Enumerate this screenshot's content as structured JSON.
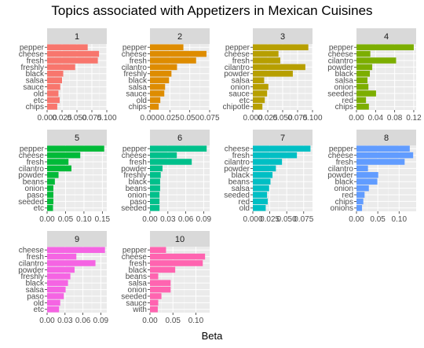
{
  "chart_data": {
    "type": "bar",
    "title": "Topics associated with Appetizers in Mexican Cuisines",
    "xlabel": "Beta",
    "ylabel": "",
    "grid": true,
    "panels": [
      {
        "name": "1",
        "color": "#F8766D",
        "xlim": [
          0,
          0.1
        ],
        "ticks": [
          0,
          0.025,
          0.05,
          0.075,
          0.1
        ],
        "tick_labels": [
          "0.000",
          "0.025",
          "0.050",
          "0.075",
          "0.100"
        ],
        "categories": [
          "pepper",
          "cheese",
          "fresh",
          "freshly",
          "black",
          "salsa",
          "sauce",
          "old",
          "etc",
          "chips"
        ],
        "values": [
          0.068,
          0.087,
          0.085,
          0.047,
          0.027,
          0.025,
          0.022,
          0.019,
          0.021,
          0.017
        ]
      },
      {
        "name": "2",
        "color": "#DE8C00",
        "xlim": [
          0,
          0.075
        ],
        "ticks": [
          0,
          0.025,
          0.05,
          0.075
        ],
        "tick_labels": [
          "0.000",
          "0.025",
          "0.050",
          "0.075"
        ],
        "categories": [
          "pepper",
          "cheese",
          "fresh",
          "cilantro",
          "freshly",
          "black",
          "salsa",
          "sauce",
          "old",
          "chips"
        ],
        "values": [
          0.042,
          0.071,
          0.058,
          0.034,
          0.027,
          0.024,
          0.019,
          0.018,
          0.013,
          0.011
        ]
      },
      {
        "name": "3",
        "color": "#B79F00",
        "xlim": [
          0,
          0.1
        ],
        "ticks": [
          0,
          0.025,
          0.05,
          0.075,
          0.1
        ],
        "tick_labels": [
          "0.000",
          "0.025",
          "0.050",
          "0.075",
          "0.100"
        ],
        "categories": [
          "pepper",
          "cheese",
          "fresh",
          "cilantro",
          "powder",
          "salsa",
          "onion",
          "sauce",
          "etc",
          "chipotle"
        ],
        "values": [
          0.093,
          0.043,
          0.046,
          0.088,
          0.067,
          0.019,
          0.026,
          0.024,
          0.02,
          0.016
        ]
      },
      {
        "name": "4",
        "color": "#7CAE00",
        "xlim": [
          0,
          0.125
        ],
        "ticks": [
          0,
          0.04,
          0.08,
          0.12
        ],
        "tick_labels": [
          "0.00",
          "0.04",
          "0.08",
          "0.12"
        ],
        "categories": [
          "pepper",
          "cheese",
          "cilantro",
          "powder",
          "black",
          "salsa",
          "onion",
          "seeded",
          "red",
          "chips"
        ],
        "values": [
          0.12,
          0.029,
          0.083,
          0.033,
          0.028,
          0.023,
          0.025,
          0.041,
          0.02,
          0.026
        ]
      },
      {
        "name": "5",
        "color": "#00BA38",
        "xlim": [
          0,
          0.162
        ],
        "ticks": [
          0,
          0.05,
          0.1,
          0.15
        ],
        "tick_labels": [
          "0.00",
          "0.05",
          "0.10",
          "0.15"
        ],
        "categories": [
          "pepper",
          "cheese",
          "fresh",
          "cilantro",
          "powder",
          "beans",
          "onion",
          "paso",
          "seeded",
          "etc"
        ],
        "values": [
          0.155,
          0.09,
          0.058,
          0.066,
          0.031,
          0.021,
          0.017,
          0.017,
          0.017,
          0.016
        ]
      },
      {
        "name": "6",
        "color": "#00C08B",
        "xlim": [
          0,
          0.1
        ],
        "ticks": [
          0,
          0.03,
          0.06,
          0.09
        ],
        "tick_labels": [
          "0.00",
          "0.03",
          "0.06",
          "0.09"
        ],
        "categories": [
          "pepper",
          "cheese",
          "fresh",
          "powder",
          "freshly",
          "black",
          "beans",
          "onion",
          "paso",
          "seeded"
        ],
        "values": [
          0.095,
          0.045,
          0.07,
          0.021,
          0.018,
          0.017,
          0.017,
          0.016,
          0.016,
          0.016
        ]
      },
      {
        "name": "7",
        "color": "#00BFC4",
        "xlim": [
          0,
          0.088
        ],
        "ticks": [
          0,
          0.025,
          0.05,
          0.075
        ],
        "tick_labels": [
          "0.000",
          "0.025",
          "0.050",
          "0.075"
        ],
        "categories": [
          "cheese",
          "fresh",
          "cilantro",
          "powder",
          "black",
          "beans",
          "salsa",
          "seeded",
          "red",
          "old"
        ],
        "values": [
          0.085,
          0.065,
          0.043,
          0.034,
          0.029,
          0.026,
          0.024,
          0.021,
          0.022,
          0.019
        ]
      },
      {
        "name": "8",
        "color": "#619CFF",
        "xlim": [
          0,
          0.14
        ],
        "ticks": [
          0,
          0.05,
          0.1
        ],
        "tick_labels": [
          "0.00",
          "0.05",
          "0.10"
        ],
        "categories": [
          "pepper",
          "cheese",
          "fresh",
          "cilantro",
          "powder",
          "black",
          "onion",
          "red",
          "chips",
          "onions"
        ],
        "values": [
          0.125,
          0.133,
          0.113,
          0.027,
          0.051,
          0.049,
          0.029,
          0.019,
          0.016,
          0.013
        ]
      },
      {
        "name": "9",
        "color": "#F564E3",
        "xlim": [
          0,
          0.1
        ],
        "ticks": [
          0,
          0.03,
          0.06,
          0.09
        ],
        "tick_labels": [
          "0.00",
          "0.03",
          "0.06",
          "0.09"
        ],
        "categories": [
          "cheese",
          "fresh",
          "cilantro",
          "powder",
          "freshly",
          "black",
          "salsa",
          "paso",
          "old",
          "etc"
        ],
        "values": [
          0.097,
          0.049,
          0.081,
          0.046,
          0.039,
          0.035,
          0.031,
          0.028,
          0.022,
          0.02
        ]
      },
      {
        "name": "10",
        "color": "#FF64B0",
        "xlim": [
          0,
          0.13
        ],
        "ticks": [
          0,
          0.05,
          0.1
        ],
        "tick_labels": [
          "0.00",
          "0.05",
          "0.10"
        ],
        "categories": [
          "pepper",
          "cheese",
          "fresh",
          "black",
          "beans",
          "salsa",
          "onion",
          "seeded",
          "sauce",
          "with"
        ],
        "values": [
          0.035,
          0.12,
          0.115,
          0.055,
          0.018,
          0.045,
          0.045,
          0.025,
          0.018,
          0.017
        ]
      }
    ]
  }
}
